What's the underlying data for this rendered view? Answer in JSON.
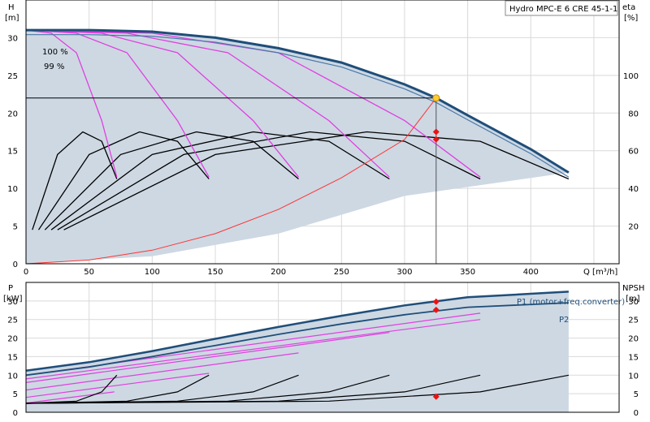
{
  "chart_data": [
    {
      "type": "line",
      "title": "Hydro MPC-E 6 CRE 45-1-1",
      "xlabel": "Q [m³/h]",
      "ylabel": "H",
      "ylabel_unit": "[m]",
      "y2label": "eta",
      "y2label_unit": "[%]",
      "xlim": [
        0,
        470
      ],
      "ylim": [
        0,
        35
      ],
      "y2lim": [
        0,
        140
      ],
      "x_ticks": [
        0,
        50,
        100,
        150,
        200,
        250,
        300,
        350,
        400
      ],
      "y_ticks": [
        0,
        5,
        10,
        15,
        20,
        25,
        30
      ],
      "y2_ticks": [
        20,
        40,
        60,
        80,
        100
      ],
      "grid": true,
      "annotations": [
        {
          "text": "100 %",
          "x": 14,
          "y": 31.2
        },
        {
          "text": "99 %",
          "x": 14,
          "y": 29.4
        }
      ],
      "max_speed_curve": {
        "Q": [
          0,
          50,
          100,
          150,
          200,
          250,
          300,
          325,
          350,
          400,
          430
        ],
        "H": [
          31,
          31,
          30.8,
          30,
          28.6,
          26.7,
          23.8,
          22,
          19.7,
          15.2,
          12.1
        ]
      },
      "pump_curves_full": [
        {
          "pumps": 1,
          "Q": [
            0,
            20,
            40,
            60,
            72
          ],
          "H": [
            31,
            30.6,
            28,
            19,
            11.5
          ]
        },
        {
          "pumps": 2,
          "Q": [
            0,
            40,
            80,
            120,
            145
          ],
          "H": [
            31,
            30.6,
            28,
            19,
            11.5
          ]
        },
        {
          "pumps": 3,
          "Q": [
            0,
            60,
            120,
            180,
            216
          ],
          "H": [
            31,
            30.6,
            28,
            19,
            11.5
          ]
        },
        {
          "pumps": 4,
          "Q": [
            0,
            80,
            160,
            240,
            288
          ],
          "H": [
            31,
            30.6,
            28,
            19,
            11.5
          ]
        },
        {
          "pumps": 5,
          "Q": [
            0,
            100,
            200,
            300,
            360
          ],
          "H": [
            31,
            30.6,
            28,
            19,
            11.5
          ]
        }
      ],
      "efficiency_curves": [
        {
          "Q": [
            5,
            25,
            45,
            60,
            72
          ],
          "eta": [
            18,
            58,
            70,
            65,
            45
          ]
        },
        {
          "Q": [
            10,
            50,
            90,
            120,
            145
          ],
          "eta": [
            18,
            58,
            70,
            65,
            45
          ]
        },
        {
          "Q": [
            15,
            75,
            135,
            180,
            216
          ],
          "eta": [
            18,
            58,
            70,
            65,
            45
          ]
        },
        {
          "Q": [
            20,
            100,
            180,
            240,
            288
          ],
          "eta": [
            18,
            58,
            70,
            65,
            45
          ]
        },
        {
          "Q": [
            25,
            125,
            225,
            300,
            360
          ],
          "eta": [
            18,
            58,
            70,
            65,
            45
          ]
        },
        {
          "Q": [
            30,
            150,
            270,
            360,
            430
          ],
          "eta": [
            18,
            58,
            70,
            65,
            45
          ]
        }
      ],
      "system_curve": {
        "Q": [
          0,
          50,
          100,
          150,
          200,
          250,
          300,
          325
        ],
        "H": [
          0,
          0.5,
          1.8,
          4,
          7.2,
          11.4,
          16.5,
          22
        ]
      },
      "duty_point": {
        "Q": 325,
        "H": 22
      },
      "duty_markers_eta": [
        70,
        66
      ],
      "setpoint_H": 22
    },
    {
      "type": "line",
      "ylabel": "P",
      "ylabel_unit": "[kW]",
      "y2label": "NPSH",
      "y2label_unit": "[m]",
      "xlim": [
        0,
        470
      ],
      "ylim": [
        0,
        35
      ],
      "x_ticks": [
        0,
        50,
        100,
        150,
        200,
        250,
        300,
        350,
        400
      ],
      "y_ticks": [
        0,
        5,
        10,
        15,
        20,
        25,
        30
      ],
      "y2_ticks": [
        0,
        5,
        10,
        15,
        20,
        25,
        30
      ],
      "grid": true,
      "series": [
        {
          "name": "P1 (motor+freq.converter)",
          "Q": [
            0,
            50,
            100,
            150,
            200,
            250,
            300,
            350,
            430
          ],
          "P": [
            11.2,
            13.5,
            16.5,
            19.8,
            23,
            26,
            28.8,
            31,
            32.5
          ]
        },
        {
          "name": "P2",
          "Q": [
            0,
            50,
            100,
            150,
            200,
            250,
            300,
            350,
            430
          ],
          "P": [
            10,
            12.2,
            15,
            18,
            21,
            23.8,
            26.3,
            28.3,
            29.5
          ]
        }
      ],
      "power_curves_partial": [
        {
          "Q": [
            0,
            70
          ],
          "P": [
            2.5,
            5.5
          ]
        },
        {
          "Q": [
            0,
            145
          ],
          "P": [
            4,
            10.5
          ]
        },
        {
          "Q": [
            0,
            216
          ],
          "P": [
            6,
            16
          ]
        },
        {
          "Q": [
            0,
            288
          ],
          "P": [
            8,
            21.5
          ]
        },
        {
          "Q": [
            0,
            360
          ],
          "P": [
            9,
            25
          ]
        },
        {
          "Q": [
            0,
            360
          ],
          "P": [
            10,
            26.7
          ]
        }
      ],
      "npsh_curves": [
        {
          "Q": [
            0,
            40,
            60,
            72
          ],
          "NPSH": [
            2.4,
            3,
            5.5,
            10
          ]
        },
        {
          "Q": [
            0,
            80,
            120,
            145
          ],
          "NPSH": [
            2.4,
            3,
            5.5,
            10
          ]
        },
        {
          "Q": [
            0,
            120,
            180,
            216
          ],
          "NPSH": [
            2.4,
            3,
            5.5,
            10
          ]
        },
        {
          "Q": [
            0,
            160,
            240,
            288
          ],
          "NPSH": [
            2.4,
            3,
            5.5,
            10
          ]
        },
        {
          "Q": [
            0,
            200,
            300,
            360
          ],
          "NPSH": [
            2.4,
            3,
            5.5,
            10
          ]
        },
        {
          "Q": [
            0,
            240,
            360,
            430
          ],
          "NPSH": [
            2.4,
            3,
            5.5,
            10
          ]
        }
      ],
      "duty_markers": [
        {
          "Q": 325,
          "P": 29.8
        },
        {
          "Q": 325,
          "P": 27.6
        },
        {
          "Q": 325,
          "P": 4.2
        }
      ]
    }
  ]
}
